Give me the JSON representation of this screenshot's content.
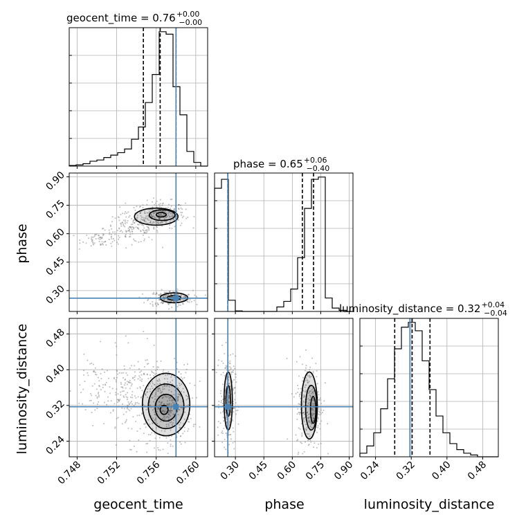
{
  "chart_data": {
    "type": "corner",
    "parameters": [
      "geocent_time",
      "phase",
      "luminosity_distance"
    ],
    "axis_labels": {
      "geocent_time": "geocent_time",
      "phase": "phase",
      "luminosity_distance": "luminosity_distance"
    },
    "titles": [
      {
        "param": "geocent_time",
        "text": "geocent_time = 0.76",
        "sup": "+0.00",
        "sub": "−0.00"
      },
      {
        "param": "phase",
        "text": "phase = 0.65",
        "sup": "+0.06",
        "sub": "−0.40"
      },
      {
        "param": "luminosity_distance",
        "text": "luminosity_distance = 0.32",
        "sup": "+0.04",
        "sub": "−0.04"
      }
    ],
    "ranges": {
      "geocent_time": [
        0.7472,
        0.7612
      ],
      "phase": [
        0.19,
        0.92
      ],
      "luminosity_distance": [
        0.205,
        0.515
      ]
    },
    "ticks": {
      "geocent_time": [
        "0.748",
        "0.752",
        "0.756",
        "0.760"
      ],
      "phase": [
        "0.30",
        "0.45",
        "0.60",
        "0.75",
        "0.90"
      ],
      "luminosity_distance": [
        "0.24",
        "0.32",
        "0.40",
        "0.48"
      ]
    },
    "truths": {
      "geocent_time": 0.758,
      "phase": 0.26,
      "luminosity_distance": 0.317
    },
    "quantiles": {
      "geocent_time": [
        0.7547,
        0.7564,
        0.758
      ],
      "phase": [
        0.26,
        0.653,
        0.712
      ],
      "luminosity_distance": [
        0.283,
        0.322,
        0.362
      ]
    },
    "histograms": {
      "geocent_time": {
        "edges": [
          0.7472,
          0.7479,
          0.7486,
          0.7493,
          0.75,
          0.7507,
          0.7514,
          0.7521,
          0.7528,
          0.7535,
          0.7542,
          0.7549,
          0.7556,
          0.7563,
          0.757,
          0.7577,
          0.7584,
          0.7591,
          0.7598,
          0.7605,
          0.7612
        ],
        "counts": [
          0.5,
          1,
          2,
          4,
          5,
          7,
          9,
          11,
          14,
          22,
          32,
          52,
          75,
          110,
          108,
          65,
          42,
          12,
          3,
          0
        ]
      },
      "phase": {
        "edges": [
          0.19,
          0.2265,
          0.263,
          0.2995,
          0.336,
          0.3725,
          0.409,
          0.4455,
          0.482,
          0.5185,
          0.555,
          0.5915,
          0.628,
          0.6645,
          0.701,
          0.7375,
          0.774,
          0.8105,
          0.847,
          0.8835,
          0.92
        ],
        "counts": [
          110,
          118,
          10,
          0.5,
          0,
          0,
          0,
          0,
          0,
          4,
          9,
          20,
          48,
          92,
          118,
          120,
          12,
          3,
          1,
          0
        ]
      },
      "luminosity_distance": {
        "edges": [
          0.205,
          0.2205,
          0.236,
          0.2515,
          0.267,
          0.2825,
          0.298,
          0.3135,
          0.329,
          0.3445,
          0.36,
          0.3755,
          0.391,
          0.4065,
          0.422,
          0.4375,
          0.453,
          0.4685,
          0.484,
          0.4995,
          0.515
        ],
        "counts": [
          3,
          9,
          20,
          40,
          65,
          90,
          108,
          112,
          105,
          80,
          56,
          34,
          20,
          11,
          6,
          3,
          1.5,
          0,
          0,
          0
        ]
      }
    },
    "scatter_clusters": {
      "geocent_time__phase": [
        {
          "cx": 0.7565,
          "cy": 0.7,
          "sx": 0.0012,
          "sy": 0.035,
          "n": 280
        },
        {
          "cx": 0.7535,
          "cy": 0.63,
          "sx": 0.0014,
          "sy": 0.04,
          "n": 150
        },
        {
          "cx": 0.7505,
          "cy": 0.57,
          "sx": 0.001,
          "sy": 0.02,
          "n": 60
        },
        {
          "cx": 0.7575,
          "cy": 0.26,
          "sx": 0.0011,
          "sy": 0.02,
          "n": 230
        }
      ],
      "geocent_time__luminosity_distance": [
        {
          "cx": 0.757,
          "cy": 0.32,
          "sx": 0.0013,
          "sy": 0.045,
          "n": 400
        },
        {
          "cx": 0.7535,
          "cy": 0.34,
          "sx": 0.0014,
          "sy": 0.05,
          "n": 180
        },
        {
          "cx": 0.75,
          "cy": 0.36,
          "sx": 0.0012,
          "sy": 0.04,
          "n": 70
        }
      ],
      "phase__luminosity_distance": [
        {
          "cx": 0.26,
          "cy": 0.33,
          "sx": 0.02,
          "sy": 0.05,
          "n": 260
        },
        {
          "cx": 0.69,
          "cy": 0.32,
          "sx": 0.035,
          "sy": 0.05,
          "n": 300
        }
      ]
    },
    "contours": {
      "geocent_time__phase": [
        {
          "cx": 0.7565,
          "cy": 0.7,
          "rx": 0.0005,
          "ry": 0.012
        },
        {
          "cx": 0.7566,
          "cy": 0.698,
          "rx": 0.0013,
          "ry": 0.028
        },
        {
          "cx": 0.756,
          "cy": 0.69,
          "rx": 0.0022,
          "ry": 0.045
        },
        {
          "cx": 0.7578,
          "cy": 0.262,
          "rx": 0.0007,
          "ry": 0.012
        },
        {
          "cx": 0.7578,
          "cy": 0.262,
          "rx": 0.0014,
          "ry": 0.026
        }
      ],
      "geocent_time__luminosity_distance": [
        {
          "cx": 0.7568,
          "cy": 0.31,
          "rx": 0.0004,
          "ry": 0.01
        },
        {
          "cx": 0.757,
          "cy": 0.315,
          "rx": 0.0011,
          "ry": 0.03
        },
        {
          "cx": 0.757,
          "cy": 0.318,
          "rx": 0.0018,
          "ry": 0.05
        },
        {
          "cx": 0.757,
          "cy": 0.322,
          "rx": 0.0024,
          "ry": 0.07
        }
      ],
      "phase__luminosity_distance": [
        {
          "cx": 0.262,
          "cy": 0.33,
          "rx": 0.012,
          "ry": 0.035
        },
        {
          "cx": 0.262,
          "cy": 0.33,
          "rx": 0.022,
          "ry": 0.065
        },
        {
          "cx": 0.71,
          "cy": 0.31,
          "rx": 0.014,
          "ry": 0.03
        },
        {
          "cx": 0.7,
          "cy": 0.315,
          "rx": 0.03,
          "ry": 0.05
        },
        {
          "cx": 0.69,
          "cy": 0.32,
          "rx": 0.042,
          "ry": 0.075
        }
      ]
    },
    "colors": {
      "truth": "#4682b4",
      "hist": "#000000",
      "scatter": "#808080",
      "grid": "#b0b0b0"
    },
    "grid": true
  }
}
